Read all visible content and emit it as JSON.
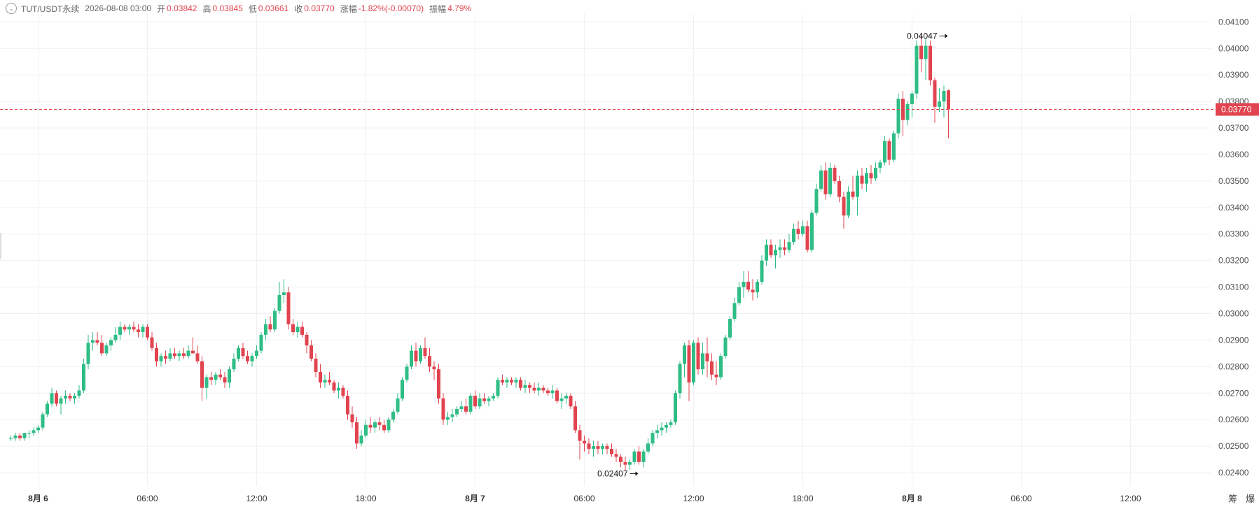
{
  "header": {
    "symbol": "TUT/USDT永续",
    "datetime": "2026-08-08 03:00",
    "open_label": "开",
    "open": "0.03842",
    "high_label": "高",
    "high": "0.03845",
    "low_label": "低",
    "low": "0.03661",
    "close_label": "收",
    "close": "0.03770",
    "change_label": "涨幅",
    "change": "-1.82%(-0.00070)",
    "amplitude_label": "振幅",
    "amplitude": "4.79%"
  },
  "colors": {
    "up": "#26a69a",
    "down": "#e1444f",
    "up_body": "#2ebd85",
    "grid": "#f0f0f0",
    "price_line": "#e1444f"
  },
  "tools": {
    "chip": "筹",
    "burst": "爆"
  },
  "chart_data": {
    "type": "candlestick",
    "interval": "1h",
    "y_range": [
      0.0235,
      0.0413
    ],
    "y_ticks": [
      "0.02400",
      "0.02500",
      "0.02600",
      "0.02700",
      "0.02800",
      "0.02900",
      "0.03000",
      "0.03100",
      "0.03200",
      "0.03300",
      "0.03400",
      "0.03500",
      "0.03600",
      "0.03700",
      "0.03800",
      "0.03900",
      "0.04000",
      "0.04100"
    ],
    "x_labels": [
      {
        "index": 6,
        "label": "8月 6",
        "bold": true
      },
      {
        "index": 30,
        "label": "06:00"
      },
      {
        "index": 54,
        "label": "12:00"
      },
      {
        "index": 78,
        "label": "18:00"
      },
      {
        "index": 102,
        "label": "8月 7",
        "bold": true
      },
      {
        "index": 126,
        "label": "06:00"
      },
      {
        "index": 150,
        "label": "12:00"
      },
      {
        "index": 174,
        "label": "18:00"
      },
      {
        "index": 198,
        "label": "8月 8",
        "bold": true
      },
      {
        "index": 222,
        "label": "06:00"
      },
      {
        "index": 246,
        "label": "12:00"
      }
    ],
    "last_price": "0.03770",
    "last_price_value": 0.0377,
    "annotations": [
      {
        "label": "0.04047",
        "type": "high",
        "index": 206,
        "value": 0.04047
      },
      {
        "label": "0.02407",
        "type": "low",
        "index": 138,
        "value": 0.02407
      }
    ],
    "candles": [
      [
        0.0253,
        0.0254,
        0.0252,
        0.0253
      ],
      [
        0.0253,
        0.0255,
        0.0252,
        0.0254
      ],
      [
        0.0254,
        0.0255,
        0.0252,
        0.0253
      ],
      [
        0.0253,
        0.0255,
        0.0252,
        0.0255
      ],
      [
        0.0255,
        0.0256,
        0.0253,
        0.0255
      ],
      [
        0.0255,
        0.0257,
        0.0254,
        0.0256
      ],
      [
        0.0256,
        0.0258,
        0.0255,
        0.0257
      ],
      [
        0.0257,
        0.0263,
        0.0256,
        0.0262
      ],
      [
        0.0262,
        0.0267,
        0.0261,
        0.0266
      ],
      [
        0.0266,
        0.0272,
        0.0265,
        0.027
      ],
      [
        0.027,
        0.0271,
        0.0265,
        0.0266
      ],
      [
        0.0266,
        0.0269,
        0.0262,
        0.0268
      ],
      [
        0.0268,
        0.0271,
        0.0266,
        0.0269
      ],
      [
        0.0269,
        0.027,
        0.0267,
        0.0268
      ],
      [
        0.0268,
        0.027,
        0.0266,
        0.0269
      ],
      [
        0.0269,
        0.0273,
        0.0268,
        0.0271
      ],
      [
        0.0271,
        0.0283,
        0.027,
        0.0281
      ],
      [
        0.0281,
        0.0292,
        0.0279,
        0.0289
      ],
      [
        0.0289,
        0.0293,
        0.0286,
        0.029
      ],
      [
        0.029,
        0.0293,
        0.0288,
        0.0289
      ],
      [
        0.0289,
        0.0292,
        0.0284,
        0.0285
      ],
      [
        0.0285,
        0.0289,
        0.0284,
        0.0288
      ],
      [
        0.0288,
        0.0291,
        0.0286,
        0.029
      ],
      [
        0.029,
        0.0295,
        0.0289,
        0.0292
      ],
      [
        0.0292,
        0.0297,
        0.029,
        0.0295
      ],
      [
        0.0295,
        0.0296,
        0.0293,
        0.0294
      ],
      [
        0.0294,
        0.0296,
        0.0292,
        0.0295
      ],
      [
        0.0295,
        0.0297,
        0.0293,
        0.0294
      ],
      [
        0.0294,
        0.0296,
        0.0291,
        0.0293
      ],
      [
        0.0293,
        0.0296,
        0.0291,
        0.0295
      ],
      [
        0.0295,
        0.0296,
        0.029,
        0.0291
      ],
      [
        0.0291,
        0.0293,
        0.0286,
        0.0287
      ],
      [
        0.0287,
        0.0289,
        0.028,
        0.0282
      ],
      [
        0.0282,
        0.0285,
        0.028,
        0.0284
      ],
      [
        0.0284,
        0.0286,
        0.0281,
        0.0283
      ],
      [
        0.0283,
        0.0287,
        0.0282,
        0.0285
      ],
      [
        0.0285,
        0.0287,
        0.0283,
        0.0284
      ],
      [
        0.0284,
        0.0286,
        0.0282,
        0.0285
      ],
      [
        0.0285,
        0.0287,
        0.0283,
        0.0284
      ],
      [
        0.0284,
        0.0288,
        0.0283,
        0.0286
      ],
      [
        0.0286,
        0.0291,
        0.0285,
        0.0285
      ],
      [
        0.0285,
        0.0288,
        0.0281,
        0.0282
      ],
      [
        0.0282,
        0.0284,
        0.0267,
        0.0272
      ],
      [
        0.0272,
        0.0277,
        0.0268,
        0.0276
      ],
      [
        0.0276,
        0.0278,
        0.0273,
        0.0275
      ],
      [
        0.0275,
        0.0278,
        0.0273,
        0.0277
      ],
      [
        0.0277,
        0.0279,
        0.0275,
        0.0276
      ],
      [
        0.0276,
        0.0278,
        0.0272,
        0.0274
      ],
      [
        0.0274,
        0.028,
        0.0272,
        0.0279
      ],
      [
        0.0279,
        0.0285,
        0.0278,
        0.0283
      ],
      [
        0.0283,
        0.0288,
        0.0282,
        0.0287
      ],
      [
        0.0287,
        0.0289,
        0.0283,
        0.0284
      ],
      [
        0.0284,
        0.0286,
        0.0281,
        0.0282
      ],
      [
        0.0282,
        0.0285,
        0.028,
        0.0284
      ],
      [
        0.0284,
        0.0288,
        0.0283,
        0.0286
      ],
      [
        0.0286,
        0.0293,
        0.0285,
        0.0292
      ],
      [
        0.0292,
        0.0298,
        0.029,
        0.0296
      ],
      [
        0.0296,
        0.0299,
        0.0293,
        0.0294
      ],
      [
        0.0294,
        0.0302,
        0.0293,
        0.0301
      ],
      [
        0.0301,
        0.0312,
        0.03,
        0.0307
      ],
      [
        0.0307,
        0.0313,
        0.0304,
        0.0308
      ],
      [
        0.0308,
        0.031,
        0.0294,
        0.0296
      ],
      [
        0.0296,
        0.0298,
        0.0292,
        0.0293
      ],
      [
        0.0293,
        0.0297,
        0.0291,
        0.0295
      ],
      [
        0.0295,
        0.0297,
        0.0291,
        0.0292
      ],
      [
        0.0292,
        0.0293,
        0.0285,
        0.0288
      ],
      [
        0.0288,
        0.029,
        0.0282,
        0.0283
      ],
      [
        0.0283,
        0.0285,
        0.0276,
        0.0278
      ],
      [
        0.0278,
        0.0281,
        0.0272,
        0.0274
      ],
      [
        0.0274,
        0.0277,
        0.0272,
        0.0275
      ],
      [
        0.0275,
        0.0278,
        0.0273,
        0.0274
      ],
      [
        0.0274,
        0.0275,
        0.027,
        0.0271
      ],
      [
        0.0271,
        0.0274,
        0.0268,
        0.0272
      ],
      [
        0.0272,
        0.0273,
        0.0268,
        0.0269
      ],
      [
        0.0269,
        0.0271,
        0.026,
        0.0262
      ],
      [
        0.0262,
        0.0265,
        0.0257,
        0.0259
      ],
      [
        0.0259,
        0.0261,
        0.0249,
        0.0251
      ],
      [
        0.0251,
        0.0256,
        0.025,
        0.0254
      ],
      [
        0.0254,
        0.026,
        0.0253,
        0.0258
      ],
      [
        0.0258,
        0.0261,
        0.0255,
        0.0257
      ],
      [
        0.0257,
        0.026,
        0.0255,
        0.0259
      ],
      [
        0.0259,
        0.0261,
        0.0256,
        0.0258
      ],
      [
        0.0258,
        0.026,
        0.0255,
        0.0256
      ],
      [
        0.0256,
        0.0261,
        0.0255,
        0.026
      ],
      [
        0.026,
        0.0264,
        0.0259,
        0.0263
      ],
      [
        0.0263,
        0.027,
        0.0262,
        0.0268
      ],
      [
        0.0268,
        0.0276,
        0.0267,
        0.0275
      ],
      [
        0.0275,
        0.0281,
        0.0274,
        0.028
      ],
      [
        0.028,
        0.0288,
        0.0279,
        0.0286
      ],
      [
        0.0286,
        0.0289,
        0.028,
        0.0282
      ],
      [
        0.0282,
        0.0288,
        0.0281,
        0.0287
      ],
      [
        0.0287,
        0.0291,
        0.0283,
        0.0284
      ],
      [
        0.0284,
        0.0287,
        0.0278,
        0.028
      ],
      [
        0.028,
        0.0282,
        0.0275,
        0.0279
      ],
      [
        0.0279,
        0.0281,
        0.0266,
        0.0268
      ],
      [
        0.0268,
        0.027,
        0.0258,
        0.026
      ],
      [
        0.026,
        0.0263,
        0.0258,
        0.0261
      ],
      [
        0.0261,
        0.0264,
        0.0259,
        0.0262
      ],
      [
        0.0262,
        0.0265,
        0.0261,
        0.0264
      ],
      [
        0.0264,
        0.0267,
        0.0263,
        0.0265
      ],
      [
        0.0265,
        0.0268,
        0.0262,
        0.0263
      ],
      [
        0.0263,
        0.027,
        0.0262,
        0.0269
      ],
      [
        0.0269,
        0.0271,
        0.0264,
        0.0265
      ],
      [
        0.0265,
        0.027,
        0.0264,
        0.0268
      ],
      [
        0.0268,
        0.027,
        0.0266,
        0.0267
      ],
      [
        0.0267,
        0.0269,
        0.0265,
        0.0268
      ],
      [
        0.0268,
        0.027,
        0.0267,
        0.0269
      ],
      [
        0.0269,
        0.0276,
        0.0268,
        0.0275
      ],
      [
        0.0275,
        0.0277,
        0.0273,
        0.0274
      ],
      [
        0.0274,
        0.0276,
        0.0272,
        0.0275
      ],
      [
        0.0275,
        0.0276,
        0.0273,
        0.0274
      ],
      [
        0.0274,
        0.0276,
        0.0272,
        0.0275
      ],
      [
        0.0275,
        0.0276,
        0.0271,
        0.0272
      ],
      [
        0.0272,
        0.0275,
        0.027,
        0.0273
      ],
      [
        0.0273,
        0.0274,
        0.027,
        0.0272
      ],
      [
        0.0272,
        0.0274,
        0.027,
        0.0271
      ],
      [
        0.0271,
        0.0274,
        0.0269,
        0.0272
      ],
      [
        0.0272,
        0.0273,
        0.027,
        0.0271
      ],
      [
        0.0271,
        0.0272,
        0.0269,
        0.027
      ],
      [
        0.027,
        0.0273,
        0.0268,
        0.0271
      ],
      [
        0.0271,
        0.0272,
        0.0266,
        0.0267
      ],
      [
        0.0267,
        0.027,
        0.0264,
        0.0268
      ],
      [
        0.0268,
        0.027,
        0.0266,
        0.0269
      ],
      [
        0.0269,
        0.027,
        0.0264,
        0.0265
      ],
      [
        0.0265,
        0.0267,
        0.0255,
        0.0256
      ],
      [
        0.0256,
        0.0258,
        0.0245,
        0.0252
      ],
      [
        0.0252,
        0.0254,
        0.0248,
        0.0251
      ],
      [
        0.0251,
        0.0253,
        0.0247,
        0.0249
      ],
      [
        0.0249,
        0.0252,
        0.0246,
        0.025
      ],
      [
        0.025,
        0.0252,
        0.0247,
        0.0249
      ],
      [
        0.0249,
        0.0251,
        0.0247,
        0.025
      ],
      [
        0.025,
        0.0251,
        0.0247,
        0.0249
      ],
      [
        0.0249,
        0.0251,
        0.0246,
        0.0247
      ],
      [
        0.0247,
        0.0249,
        0.0244,
        0.0246
      ],
      [
        0.0246,
        0.0247,
        0.0242,
        0.0244
      ],
      [
        0.0244,
        0.0246,
        0.02407,
        0.0243
      ],
      [
        0.0243,
        0.0245,
        0.0241,
        0.0244
      ],
      [
        0.0244,
        0.0249,
        0.0243,
        0.0248
      ],
      [
        0.0248,
        0.025,
        0.0243,
        0.0244
      ],
      [
        0.0244,
        0.0249,
        0.0242,
        0.0248
      ],
      [
        0.0248,
        0.0253,
        0.0247,
        0.0251
      ],
      [
        0.0251,
        0.0256,
        0.025,
        0.0255
      ],
      [
        0.0255,
        0.0258,
        0.0253,
        0.0256
      ],
      [
        0.0256,
        0.0259,
        0.0254,
        0.0257
      ],
      [
        0.0257,
        0.0259,
        0.0255,
        0.0258
      ],
      [
        0.0258,
        0.026,
        0.0257,
        0.0259
      ],
      [
        0.0259,
        0.0271,
        0.0258,
        0.027
      ],
      [
        0.027,
        0.0282,
        0.0268,
        0.0281
      ],
      [
        0.0281,
        0.0289,
        0.0276,
        0.0288
      ],
      [
        0.0288,
        0.029,
        0.0267,
        0.0274
      ],
      [
        0.0274,
        0.029,
        0.0273,
        0.0289
      ],
      [
        0.0289,
        0.0291,
        0.0277,
        0.0279
      ],
      [
        0.0279,
        0.0289,
        0.0277,
        0.0285
      ],
      [
        0.0285,
        0.0291,
        0.0276,
        0.0282
      ],
      [
        0.0282,
        0.0285,
        0.0275,
        0.0277
      ],
      [
        0.0277,
        0.0282,
        0.0273,
        0.0276
      ],
      [
        0.0276,
        0.0285,
        0.0275,
        0.0284
      ],
      [
        0.0284,
        0.0292,
        0.0283,
        0.0291
      ],
      [
        0.0291,
        0.0299,
        0.029,
        0.0298
      ],
      [
        0.0298,
        0.0306,
        0.0297,
        0.0304
      ],
      [
        0.0304,
        0.0312,
        0.0303,
        0.031
      ],
      [
        0.031,
        0.0316,
        0.0306,
        0.0312
      ],
      [
        0.0312,
        0.0316,
        0.0308,
        0.0309
      ],
      [
        0.0309,
        0.0313,
        0.0305,
        0.0308
      ],
      [
        0.0308,
        0.0313,
        0.0306,
        0.0312
      ],
      [
        0.0312,
        0.0322,
        0.0311,
        0.032
      ],
      [
        0.032,
        0.0328,
        0.0318,
        0.0326
      ],
      [
        0.0326,
        0.0328,
        0.0321,
        0.0322
      ],
      [
        0.0322,
        0.0326,
        0.0317,
        0.0324
      ],
      [
        0.0324,
        0.0328,
        0.0321,
        0.0325
      ],
      [
        0.0325,
        0.0328,
        0.0322,
        0.0324
      ],
      [
        0.0324,
        0.033,
        0.0323,
        0.0327
      ],
      [
        0.0327,
        0.0334,
        0.0326,
        0.0332
      ],
      [
        0.0332,
        0.0335,
        0.0328,
        0.033
      ],
      [
        0.033,
        0.0335,
        0.0329,
        0.0333
      ],
      [
        0.0333,
        0.0335,
        0.0323,
        0.0324
      ],
      [
        0.0324,
        0.0339,
        0.0323,
        0.0338
      ],
      [
        0.0338,
        0.0349,
        0.0337,
        0.0347
      ],
      [
        0.0347,
        0.0356,
        0.0346,
        0.0354
      ],
      [
        0.0354,
        0.0357,
        0.0343,
        0.0345
      ],
      [
        0.0345,
        0.0357,
        0.0344,
        0.0355
      ],
      [
        0.0355,
        0.0356,
        0.0349,
        0.035
      ],
      [
        0.035,
        0.0352,
        0.0342,
        0.0344
      ],
      [
        0.0344,
        0.0346,
        0.0332,
        0.0337
      ],
      [
        0.0337,
        0.0348,
        0.0336,
        0.0346
      ],
      [
        0.0346,
        0.0352,
        0.0343,
        0.0344
      ],
      [
        0.0344,
        0.0354,
        0.0337,
        0.0352
      ],
      [
        0.0352,
        0.0355,
        0.0347,
        0.0349
      ],
      [
        0.0349,
        0.0355,
        0.0346,
        0.0353
      ],
      [
        0.0353,
        0.0356,
        0.0349,
        0.0351
      ],
      [
        0.0351,
        0.0357,
        0.035,
        0.0355
      ],
      [
        0.0355,
        0.0358,
        0.0353,
        0.0357
      ],
      [
        0.0357,
        0.0367,
        0.0356,
        0.0365
      ],
      [
        0.0365,
        0.0366,
        0.0356,
        0.0358
      ],
      [
        0.0358,
        0.0369,
        0.0357,
        0.0368
      ],
      [
        0.0368,
        0.0383,
        0.0366,
        0.0381
      ],
      [
        0.0381,
        0.0384,
        0.0367,
        0.0373
      ],
      [
        0.0373,
        0.038,
        0.0371,
        0.0379
      ],
      [
        0.0379,
        0.0384,
        0.0374,
        0.0383
      ],
      [
        0.0383,
        0.0403,
        0.0381,
        0.0401
      ],
      [
        0.0401,
        0.04047,
        0.0391,
        0.0396
      ],
      [
        0.0396,
        0.0404,
        0.0388,
        0.0401
      ],
      [
        0.0401,
        0.0403,
        0.0386,
        0.0388
      ],
      [
        0.0388,
        0.0389,
        0.0372,
        0.0378
      ],
      [
        0.0378,
        0.0385,
        0.0376,
        0.038
      ],
      [
        0.038,
        0.0386,
        0.0374,
        0.0384
      ],
      [
        0.03842,
        0.03845,
        0.03661,
        0.0377
      ]
    ]
  }
}
